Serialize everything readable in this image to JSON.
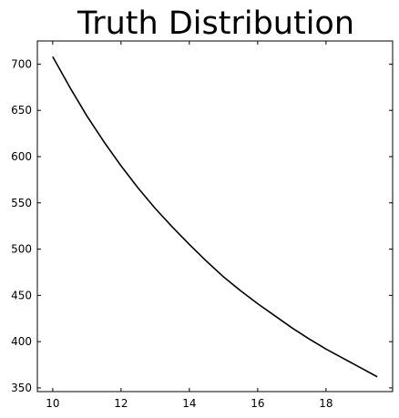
{
  "chart_data": {
    "type": "line",
    "title": "Truth Distribution",
    "xlabel": "",
    "ylabel": "",
    "xlim": [
      9.55,
      19.95
    ],
    "ylim": [
      346,
      725
    ],
    "grid": false,
    "xticks": [
      10,
      12,
      14,
      16,
      18
    ],
    "yticks": [
      350,
      400,
      450,
      500,
      550,
      600,
      650,
      700
    ],
    "series": [
      {
        "color": "#000000",
        "x": [
          10.0,
          10.5,
          11.0,
          11.5,
          12.0,
          12.5,
          13.0,
          13.5,
          14.0,
          14.5,
          15.0,
          15.5,
          16.0,
          16.5,
          17.0,
          17.5,
          18.0,
          18.5,
          19.0,
          19.5
        ],
        "y": [
          708,
          675,
          644,
          616,
          590,
          566,
          544,
          524,
          505,
          487,
          470,
          455,
          441,
          428,
          415,
          403,
          392,
          382,
          372,
          362
        ]
      }
    ]
  }
}
